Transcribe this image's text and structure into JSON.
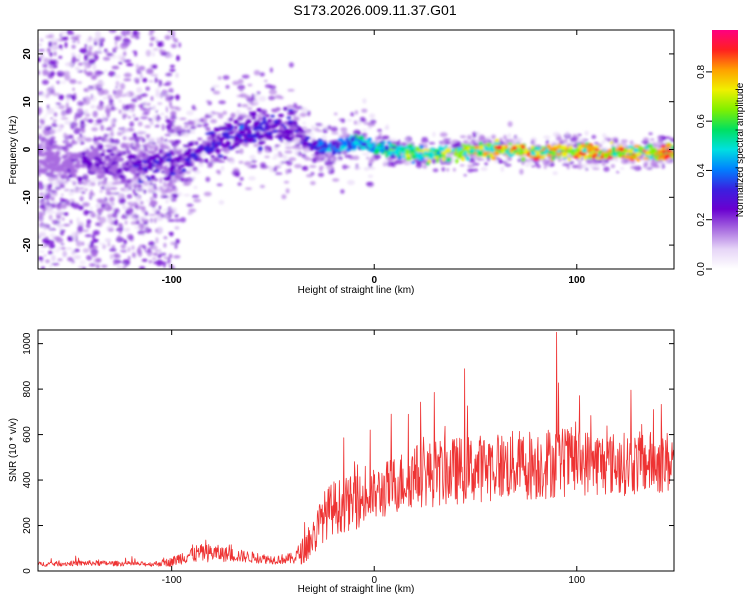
{
  "title": "S173.2026.009.11.37.G01",
  "chart_data": [
    {
      "type": "heatmap",
      "xlabel": "Height of straight line (km)",
      "ylabel": "Frequency (Hz)",
      "xlim": [
        -166,
        148
      ],
      "ylim": [
        -25,
        25
      ],
      "xticks": [
        -100,
        0,
        100
      ],
      "xtick_labels": [
        "-100",
        "0",
        "100"
      ],
      "yticks": [
        -20,
        -10,
        0,
        10,
        20
      ],
      "ytick_labels": [
        "-20",
        "-10",
        "0",
        "10",
        "20"
      ],
      "ridge": {
        "x": [
          -166,
          -150,
          -130,
          -110,
          -100,
          -90,
          -80,
          -70,
          -60,
          -50,
          -40,
          -35,
          -30,
          -20,
          -10,
          0,
          10,
          20,
          40,
          60,
          80,
          100,
          120,
          148
        ],
        "y": [
          -2,
          -3,
          -3,
          -4,
          -3,
          -1,
          1,
          3,
          4,
          5,
          5,
          2,
          1,
          0.5,
          1.5,
          0.5,
          0,
          -1,
          -0.5,
          0,
          -0.5,
          -0.5,
          -0.7,
          -0.6
        ],
        "amplitude": [
          0.15,
          0.2,
          0.25,
          0.3,
          0.3,
          0.3,
          0.3,
          0.35,
          0.35,
          0.3,
          0.3,
          0.3,
          0.4,
          0.45,
          0.5,
          0.55,
          0.6,
          0.7,
          0.8,
          0.85,
          0.85,
          0.9,
          0.9,
          0.9
        ]
      },
      "colorbar": {
        "label": "Normalized spectral amplitude",
        "range": [
          0,
          0.97
        ],
        "ticks": [
          0.0,
          0.2,
          0.4,
          0.6,
          0.8
        ],
        "tick_labels": [
          "0.0",
          "0.2",
          "0.4",
          "0.6",
          "0.8"
        ],
        "colors": [
          "#ffffff",
          "#e6d5f7",
          "#a86be0",
          "#6a00d0",
          "#3a20e0",
          "#0080ff",
          "#00e0e0",
          "#00e060",
          "#80f000",
          "#f0f000",
          "#ffa000",
          "#ff2020",
          "#ff0080"
        ]
      }
    },
    {
      "type": "line",
      "xlabel": "Height of straight line (km)",
      "ylabel": "SNR (10 * v/v)",
      "xlim": [
        -166,
        148
      ],
      "ylim": [
        0,
        1060
      ],
      "xticks": [
        -100,
        0,
        100
      ],
      "xtick_labels": [
        "-100",
        "0",
        "100"
      ],
      "yticks": [
        0,
        200,
        400,
        600,
        800,
        1000
      ],
      "ytick_labels": [
        "0",
        "200",
        "400",
        "600",
        "800",
        "1000"
      ],
      "color": "#ee3333",
      "envelope": {
        "x": [
          -166,
          -140,
          -110,
          -100,
          -95,
          -90,
          -80,
          -70,
          -60,
          -50,
          -40,
          -35,
          -30,
          -25,
          -20,
          -10,
          0,
          10,
          20,
          30,
          40,
          60,
          80,
          90,
          100,
          120,
          148
        ],
        "mean": [
          30,
          35,
          30,
          40,
          60,
          75,
          80,
          70,
          60,
          50,
          55,
          90,
          150,
          240,
          280,
          300,
          330,
          380,
          420,
          430,
          440,
          460,
          470,
          480,
          480,
          470,
          480
        ],
        "spread": [
          10,
          12,
          10,
          20,
          30,
          40,
          40,
          30,
          25,
          20,
          25,
          60,
          90,
          110,
          120,
          120,
          120,
          130,
          140,
          150,
          150,
          150,
          160,
          160,
          150,
          140,
          140
        ]
      },
      "peak": {
        "x": 90,
        "y": 1050
      }
    }
  ]
}
